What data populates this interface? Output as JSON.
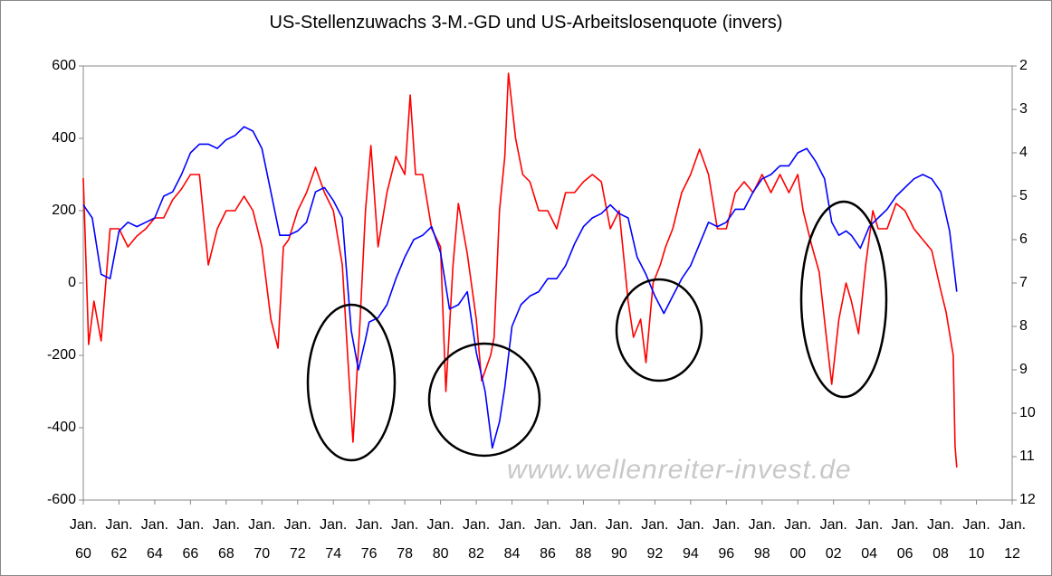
{
  "chart_data": {
    "type": "line",
    "title": "US-Stellenzuwachs 3-M.-GD und US-Arbeitslosenquote (invers)",
    "annotations": [
      "www.wellenreiter-invest.de"
    ],
    "xlim": [
      1960,
      2012
    ],
    "xticks": [
      {
        "value": 1960,
        "label": "Jan. 60"
      },
      {
        "value": 1962,
        "label": "Jan. 62"
      },
      {
        "value": 1964,
        "label": "Jan. 64"
      },
      {
        "value": 1966,
        "label": "Jan. 66"
      },
      {
        "value": 1968,
        "label": "Jan. 68"
      },
      {
        "value": 1970,
        "label": "Jan. 70"
      },
      {
        "value": 1972,
        "label": "Jan. 72"
      },
      {
        "value": 1974,
        "label": "Jan. 74"
      },
      {
        "value": 1976,
        "label": "Jan. 76"
      },
      {
        "value": 1978,
        "label": "Jan. 78"
      },
      {
        "value": 1980,
        "label": "Jan. 80"
      },
      {
        "value": 1982,
        "label": "Jan. 82"
      },
      {
        "value": 1984,
        "label": "Jan. 84"
      },
      {
        "value": 1986,
        "label": "Jan. 86"
      },
      {
        "value": 1988,
        "label": "Jan. 88"
      },
      {
        "value": 1990,
        "label": "Jan. 90"
      },
      {
        "value": 1992,
        "label": "Jan. 92"
      },
      {
        "value": 1994,
        "label": "Jan. 94"
      },
      {
        "value": 1996,
        "label": "Jan. 96"
      },
      {
        "value": 1998,
        "label": "Jan. 98"
      },
      {
        "value": 2000,
        "label": "Jan. 00"
      },
      {
        "value": 2002,
        "label": "Jan. 02"
      },
      {
        "value": 2004,
        "label": "Jan. 04"
      },
      {
        "value": 2006,
        "label": "Jan. 06"
      },
      {
        "value": 2008,
        "label": "Jan. 08"
      },
      {
        "value": 2010,
        "label": "Jan. 10"
      },
      {
        "value": 2012,
        "label": "Jan. 12"
      }
    ],
    "ylim": [
      -600,
      600
    ],
    "yticks": [
      -600,
      -400,
      -200,
      0,
      200,
      400,
      600
    ],
    "y2lim": [
      2,
      12
    ],
    "y2ticks": [
      2,
      3,
      4,
      5,
      6,
      7,
      8,
      9,
      10,
      11,
      12
    ],
    "y2_inverted": true,
    "grid": false,
    "series": [
      {
        "color": "#ff0000",
        "x": [
          1960.0,
          1960.3,
          1960.6,
          1961.0,
          1961.5,
          1962.0,
          1962.5,
          1963.0,
          1963.5,
          1964.0,
          1964.5,
          1965.0,
          1965.5,
          1966.0,
          1966.5,
          1967.0,
          1967.5,
          1968.0,
          1968.5,
          1969.0,
          1969.5,
          1970.0,
          1970.5,
          1970.9,
          1971.2,
          1971.5,
          1972.0,
          1972.5,
          1973.0,
          1973.5,
          1974.0,
          1974.5,
          1974.8,
          1975.1,
          1975.5,
          1975.8,
          1976.1,
          1976.5,
          1977.0,
          1977.5,
          1978.0,
          1978.3,
          1978.6,
          1979.0,
          1979.5,
          1980.0,
          1980.3,
          1980.7,
          1981.0,
          1981.5,
          1982.0,
          1982.3,
          1982.8,
          1983.0,
          1983.3,
          1983.6,
          1983.8,
          1984.2,
          1984.6,
          1985.0,
          1985.5,
          1986.0,
          1986.5,
          1987.0,
          1987.5,
          1988.0,
          1988.5,
          1989.0,
          1989.5,
          1990.0,
          1990.5,
          1990.8,
          1991.2,
          1991.5,
          1991.9,
          1992.3,
          1992.6,
          1993.0,
          1993.5,
          1994.0,
          1994.5,
          1995.0,
          1995.5,
          1996.0,
          1996.5,
          1997.0,
          1997.5,
          1998.0,
          1998.5,
          1999.0,
          1999.5,
          2000.0,
          2000.3,
          2000.8,
          2001.2,
          2001.6,
          2001.9,
          2002.3,
          2002.7,
          2003.0,
          2003.4,
          2003.8,
          2004.2,
          2004.5,
          2005.0,
          2005.5,
          2006.0,
          2006.5,
          2007.0,
          2007.5,
          2008.0,
          2008.3,
          2008.7,
          2008.8,
          2008.9
        ],
        "values": [
          290,
          -170,
          -50,
          -160,
          150,
          150,
          100,
          130,
          150,
          180,
          180,
          230,
          260,
          300,
          300,
          50,
          150,
          200,
          200,
          240,
          200,
          100,
          -100,
          -180,
          100,
          120,
          200,
          250,
          320,
          250,
          200,
          50,
          -200,
          -440,
          -100,
          200,
          380,
          100,
          250,
          350,
          300,
          520,
          300,
          300,
          150,
          100,
          -300,
          50,
          220,
          80,
          -100,
          -270,
          -200,
          -150,
          200,
          350,
          580,
          400,
          300,
          280,
          200,
          200,
          150,
          250,
          250,
          280,
          300,
          280,
          150,
          200,
          -50,
          -150,
          -100,
          -220,
          0,
          50,
          100,
          150,
          250,
          300,
          370,
          300,
          150,
          150,
          250,
          280,
          250,
          300,
          250,
          300,
          250,
          300,
          200,
          100,
          30,
          -150,
          -280,
          -100,
          0,
          -50,
          -140,
          50,
          200,
          150,
          150,
          220,
          200,
          150,
          120,
          90,
          -20,
          -80,
          -200,
          -450,
          -510
        ]
      },
      {
        "color": "#0000ff",
        "axis": "y2",
        "x": [
          1960.0,
          1960.5,
          1961.0,
          1961.5,
          1962.0,
          1962.5,
          1963.0,
          1963.5,
          1964.0,
          1964.5,
          1965.0,
          1965.5,
          1966.0,
          1966.5,
          1967.0,
          1967.5,
          1968.0,
          1968.5,
          1969.0,
          1969.5,
          1970.0,
          1970.5,
          1971.0,
          1971.5,
          1972.0,
          1972.5,
          1973.0,
          1973.5,
          1974.0,
          1974.5,
          1975.0,
          1975.4,
          1975.8,
          1976.0,
          1976.5,
          1977.0,
          1977.5,
          1978.0,
          1978.5,
          1979.0,
          1979.5,
          1980.0,
          1980.5,
          1981.0,
          1981.5,
          1982.0,
          1982.5,
          1982.9,
          1983.3,
          1983.6,
          1984.0,
          1984.5,
          1985.0,
          1985.5,
          1986.0,
          1986.5,
          1987.0,
          1987.5,
          1988.0,
          1988.5,
          1989.0,
          1989.5,
          1990.0,
          1990.5,
          1991.0,
          1991.5,
          1992.0,
          1992.5,
          1993.0,
          1993.5,
          1994.0,
          1994.5,
          1995.0,
          1995.5,
          1996.0,
          1996.5,
          1997.0,
          1997.5,
          1998.0,
          1998.5,
          1999.0,
          1999.5,
          2000.0,
          2000.5,
          2001.0,
          2001.5,
          2001.9,
          2002.3,
          2002.7,
          2003.0,
          2003.5,
          2004.0,
          2004.5,
          2005.0,
          2005.5,
          2006.0,
          2006.5,
          2007.0,
          2007.5,
          2008.0,
          2008.5,
          2008.9
        ],
        "values": [
          5.2,
          5.5,
          6.8,
          6.9,
          5.8,
          5.6,
          5.7,
          5.6,
          5.5,
          5.0,
          4.9,
          4.5,
          4.0,
          3.8,
          3.8,
          3.9,
          3.7,
          3.6,
          3.4,
          3.5,
          3.9,
          4.9,
          5.9,
          5.9,
          5.8,
          5.6,
          4.9,
          4.8,
          5.1,
          5.5,
          8.1,
          9.0,
          8.3,
          7.9,
          7.8,
          7.5,
          6.9,
          6.4,
          6.0,
          5.9,
          5.7,
          6.3,
          7.6,
          7.5,
          7.2,
          8.6,
          9.5,
          10.8,
          10.2,
          9.4,
          8.0,
          7.5,
          7.3,
          7.2,
          6.9,
          6.9,
          6.6,
          6.1,
          5.7,
          5.5,
          5.4,
          5.2,
          5.4,
          5.5,
          6.4,
          6.8,
          7.3,
          7.7,
          7.3,
          6.9,
          6.6,
          6.1,
          5.6,
          5.7,
          5.6,
          5.3,
          5.3,
          4.9,
          4.6,
          4.5,
          4.3,
          4.3,
          4.0,
          3.9,
          4.2,
          4.6,
          5.6,
          5.9,
          5.8,
          5.9,
          6.2,
          5.7,
          5.5,
          5.3,
          5.0,
          4.8,
          4.6,
          4.5,
          4.6,
          4.9,
          5.8,
          7.2
        ]
      }
    ]
  }
}
